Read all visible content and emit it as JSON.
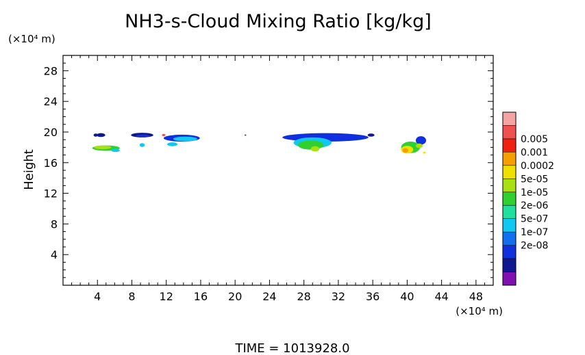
{
  "chart_data": {
    "type": "heatmap",
    "title": "NH3-s-Cloud Mixing Ratio [kg/kg]",
    "xlabel": "",
    "ylabel": "Height",
    "x_unit": "(×10⁴ m)",
    "y_unit": "(×10⁴ m)",
    "xlim": [
      0,
      50
    ],
    "ylim": [
      0,
      30
    ],
    "xticks": [
      "4",
      "8",
      "12",
      "16",
      "20",
      "24",
      "28",
      "32",
      "36",
      "40",
      "44",
      "48"
    ],
    "yticks": [
      "4",
      "8",
      "12",
      "16",
      "20",
      "24",
      "28"
    ],
    "colorbar": {
      "labels": [
        "0.005",
        "0.001",
        "0.0002",
        "5e-05",
        "1e-05",
        "2e-06",
        "5e-07",
        "1e-07",
        "2e-08"
      ],
      "colors": [
        "#f5a3a3",
        "#f05050",
        "#f02010",
        "#f5a000",
        "#f0e000",
        "#a8e010",
        "#30d030",
        "#20e0a0",
        "#10c8f0",
        "#1070f0",
        "#1030e0",
        "#101890",
        "#8010b0"
      ]
    },
    "blobs": [
      {
        "x": 4.4,
        "y": 19.6,
        "rx": 0.5,
        "ry": 0.25,
        "color": "#101890"
      },
      {
        "x": 3.8,
        "y": 19.6,
        "rx": 0.25,
        "ry": 0.2,
        "color": "#101890"
      },
      {
        "x": 5.0,
        "y": 17.9,
        "rx": 1.6,
        "ry": 0.35,
        "color": "#30d030"
      },
      {
        "x": 4.6,
        "y": 18.0,
        "rx": 1.0,
        "ry": 0.25,
        "color": "#a8e010"
      },
      {
        "x": 6.1,
        "y": 17.6,
        "rx": 0.5,
        "ry": 0.2,
        "color": "#10c8f0"
      },
      {
        "x": 9.2,
        "y": 19.6,
        "rx": 1.3,
        "ry": 0.3,
        "color": "#101890"
      },
      {
        "x": 9.3,
        "y": 19.5,
        "rx": 0.8,
        "ry": 0.15,
        "color": "#1030e0"
      },
      {
        "x": 9.2,
        "y": 18.3,
        "rx": 0.3,
        "ry": 0.25,
        "color": "#10c8f0"
      },
      {
        "x": 11.7,
        "y": 19.6,
        "rx": 0.2,
        "ry": 0.15,
        "color": "#f05050"
      },
      {
        "x": 13.8,
        "y": 19.2,
        "rx": 2.1,
        "ry": 0.45,
        "color": "#1030e0"
      },
      {
        "x": 14.2,
        "y": 19.1,
        "rx": 1.4,
        "ry": 0.3,
        "color": "#10c8f0"
      },
      {
        "x": 12.7,
        "y": 18.4,
        "rx": 0.6,
        "ry": 0.25,
        "color": "#10c8f0"
      },
      {
        "x": 21.2,
        "y": 19.6,
        "rx": 0.1,
        "ry": 0.08,
        "color": "#101890"
      },
      {
        "x": 30.5,
        "y": 19.3,
        "rx": 5.0,
        "ry": 0.55,
        "color": "#1030e0"
      },
      {
        "x": 29.0,
        "y": 18.6,
        "rx": 2.2,
        "ry": 0.7,
        "color": "#10c8f0"
      },
      {
        "x": 28.8,
        "y": 18.3,
        "rx": 1.5,
        "ry": 0.6,
        "color": "#30d030"
      },
      {
        "x": 29.3,
        "y": 17.8,
        "rx": 0.5,
        "ry": 0.35,
        "color": "#a8e010"
      },
      {
        "x": 35.8,
        "y": 19.6,
        "rx": 0.4,
        "ry": 0.2,
        "color": "#101890"
      },
      {
        "x": 41.6,
        "y": 18.9,
        "rx": 0.6,
        "ry": 0.55,
        "color": "#1030e0"
      },
      {
        "x": 40.4,
        "y": 18.0,
        "rx": 1.1,
        "ry": 0.75,
        "color": "#30d030"
      },
      {
        "x": 40.0,
        "y": 17.7,
        "rx": 0.7,
        "ry": 0.5,
        "color": "#f0e000"
      },
      {
        "x": 39.8,
        "y": 17.6,
        "rx": 0.35,
        "ry": 0.3,
        "color": "#f5a000"
      },
      {
        "x": 41.4,
        "y": 18.2,
        "rx": 0.4,
        "ry": 0.3,
        "color": "#a8e010"
      },
      {
        "x": 42.0,
        "y": 17.3,
        "rx": 0.15,
        "ry": 0.12,
        "color": "#f0e000"
      }
    ]
  },
  "footer": {
    "time_label": "TIME  =  1013928.0"
  }
}
